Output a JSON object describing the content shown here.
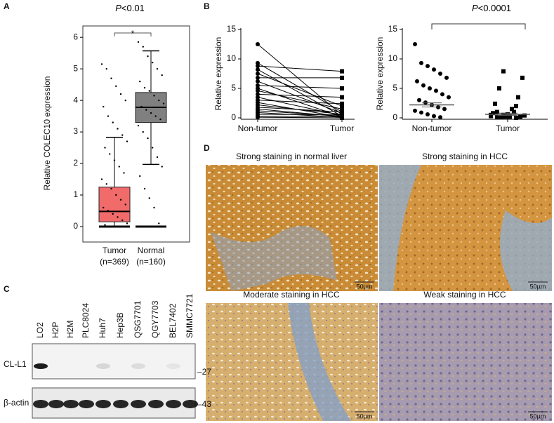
{
  "panel_labels": [
    "A",
    "B",
    "C",
    "D"
  ],
  "chart_data": [
    {
      "type": "box",
      "title": "P<0.01",
      "ylabel": "Relative COLEC10 expression",
      "categories": [
        "Tumor",
        "Normal"
      ],
      "n_labels": [
        "(n=369)",
        "(n=160)"
      ],
      "colors": [
        "#f26b6b",
        "#808080"
      ],
      "whisker_low": [
        0,
        1.97
      ],
      "q1": [
        0.15,
        3.3
      ],
      "median": [
        0.48,
        3.78
      ],
      "q3": [
        1.25,
        4.25
      ],
      "whisker_high": [
        2.83,
        5.57
      ],
      "points": [
        [
          5.15,
          5.0,
          4.7,
          4.45,
          4.2,
          4.0,
          3.8,
          3.5,
          3.3,
          3.1,
          2.9,
          2.7,
          2.5,
          2.3,
          2.1,
          1.9,
          1.7,
          1.5,
          1.35,
          1.2,
          1.0,
          0.85,
          0.7,
          0.6,
          0.5,
          0.4,
          0.3,
          0.2,
          0.1,
          0.05
        ],
        [
          5.85,
          5.7,
          5.4,
          5.2,
          5.0,
          4.8,
          4.6,
          4.4,
          4.3,
          4.15,
          4.0,
          3.9,
          3.8,
          3.7,
          3.6,
          3.5,
          3.4,
          3.2,
          3.0,
          2.8,
          2.5,
          2.2,
          1.9,
          1.6,
          1.2,
          0.9,
          0.6,
          0.1
        ]
      ],
      "annotation": "*",
      "ylim": [
        -0.49,
        6.36
      ],
      "yticks": [
        0,
        1,
        2,
        3,
        4,
        5,
        6
      ]
    },
    {
      "type": "paired",
      "ylabel": "Relative expression",
      "categories": [
        "Non-tumor",
        "Tumor"
      ],
      "values": [
        [
          12.5,
          9.3,
          8.8,
          8.2,
          7.5,
          6.8,
          6.2,
          5.5,
          5.0,
          4.6,
          4.0,
          3.5,
          3.0,
          2.6,
          2.2,
          1.8,
          1.5,
          1.2,
          0.9,
          0.6,
          0.3,
          0.1
        ],
        [
          0.5,
          1.0,
          7.9,
          0.3,
          2.0,
          6.8,
          0.8,
          5.0,
          0.2,
          1.5,
          3.5,
          0.4,
          2.4,
          0.1,
          0.6,
          1.0,
          0.2,
          0.3,
          0.1,
          0.5,
          0.2,
          0.0
        ]
      ],
      "ylim": [
        0,
        15
      ],
      "yticks": [
        0,
        5,
        10,
        15
      ]
    },
    {
      "type": "dot",
      "ylabel": "Relative expression",
      "categories": [
        "Non-tumor",
        "Tumor"
      ],
      "values": [
        [
          12.5,
          9.3,
          8.8,
          8.2,
          7.5,
          6.8,
          6.2,
          5.5,
          5.0,
          4.6,
          4.0,
          3.5,
          3.0,
          2.6,
          2.2,
          1.8,
          1.5,
          1.2,
          0.9,
          0.6,
          0.3,
          0.1
        ],
        [
          0.5,
          1.0,
          7.9,
          0.3,
          2.0,
          6.8,
          0.8,
          5.0,
          0.2,
          1.5,
          3.5,
          0.4,
          2.4,
          0.1,
          0.6,
          1.0,
          0.2,
          0.3,
          0.1,
          0.5,
          0.2,
          0.0
        ]
      ],
      "means": [
        2.2,
        0.6
      ],
      "errors": [
        0.35,
        0.2
      ],
      "annotation": "P<0.0001",
      "ylim": [
        0,
        15
      ],
      "yticks": [
        0,
        5,
        10,
        15
      ]
    }
  ],
  "blot": {
    "lanes": [
      "LO2",
      "H2P",
      "H2M",
      "PLC8024",
      "Huh7",
      "Hep3B",
      "QSG7701",
      "QGY7703",
      "BEL7402",
      "SMMC7721"
    ],
    "rows": [
      "CL-L1",
      "β-actin"
    ],
    "markers": [
      "–27",
      "–43"
    ]
  },
  "histology": [
    {
      "caption": "Strong staining in normal liver",
      "scale": "50µm"
    },
    {
      "caption": "Strong staining in HCC",
      "scale": "50µm"
    },
    {
      "caption": "Moderate staining in HCC",
      "scale": "50µm"
    },
    {
      "caption": "Weak staining in HCC",
      "scale": "50µm"
    }
  ]
}
